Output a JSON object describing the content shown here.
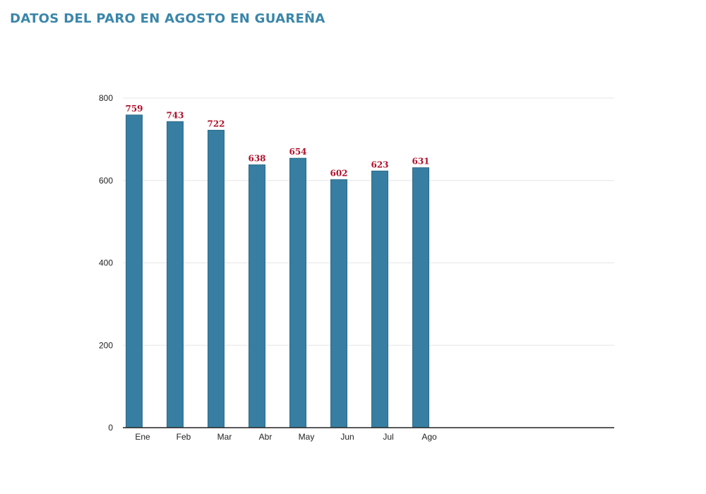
{
  "title": "DATOS DEL PARO EN AGOSTO EN GUAREÑA",
  "colors": {
    "title": "#3a86aa",
    "bar": "#377ea2",
    "bar_stroke": "#2c6b8b",
    "data_label": "#b0102a",
    "grid": "#e6e6e6",
    "axis": "#222222"
  },
  "chart_data": {
    "type": "bar",
    "categories": [
      "Ene",
      "Feb",
      "Mar",
      "Abr",
      "May",
      "Jun",
      "Jul",
      "Ago"
    ],
    "values": [
      759,
      743,
      722,
      638,
      654,
      602,
      623,
      631
    ],
    "title": "",
    "xlabel": "",
    "ylabel": "",
    "ylim": [
      0,
      800
    ],
    "yticks": [
      0,
      200,
      400,
      600,
      800
    ],
    "grid": true,
    "legend": "none",
    "data_labels": true
  }
}
